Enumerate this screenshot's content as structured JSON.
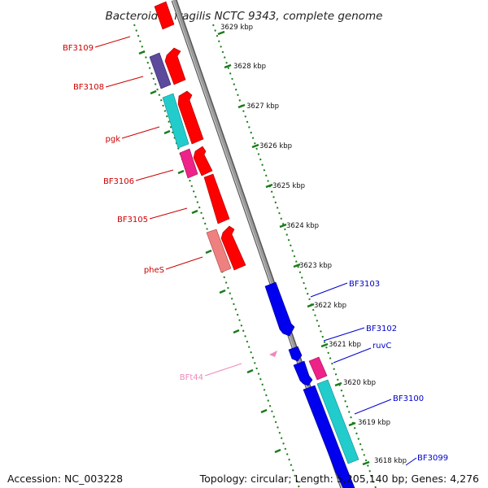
{
  "title": "Bacteroides fragilis NCTC 9343, complete genome",
  "footer": {
    "accession": "Accession: NC_003228",
    "summary": "Topology: circular; Length: 5,205,140 bp; Genes: 4,276"
  },
  "colors": {
    "backbone": "#8a8a8a",
    "tick": "#1a7a1a",
    "forward_label": "#cc0000",
    "reverse_label": "#0000cc",
    "trna_label": "#ee88bb"
  },
  "ticks": [
    "3629 kbp",
    "3628 kbp",
    "3627 kbp",
    "3626 kbp",
    "3625 kbp",
    "3624 kbp",
    "3623 kbp",
    "3622 kbp",
    "3621 kbp",
    "3620 kbp",
    "3619 kbp",
    "3618 kbp"
  ],
  "forward_genes": [
    {
      "label": "BF3109",
      "color": "#ff0000"
    },
    {
      "label": "BF3108",
      "color": "#ff0000"
    },
    {
      "label": "pgk",
      "color": "#ff0000"
    },
    {
      "label": "BF3106",
      "color": "#ff0000"
    },
    {
      "label": "BF3105",
      "color": "#ff0000"
    },
    {
      "label": "pheS",
      "color": "#ff0000"
    }
  ],
  "reverse_genes": [
    {
      "label": "BF3103",
      "color": "#0000ee"
    },
    {
      "label": "BF3102",
      "color": "#0000ee"
    },
    {
      "label": "ruvC",
      "color": "#0000ee"
    },
    {
      "label": "BF3100",
      "color": "#0000ee"
    },
    {
      "label": "BF3099",
      "color": "#0000ee"
    }
  ],
  "trna": {
    "label": "BFt44",
    "color": "#ee88bb"
  },
  "cog_colors": {
    "purple": "#5c4a9c",
    "cyan": "#22cccc",
    "magenta": "#ee2288",
    "salmon": "#ee8080"
  }
}
